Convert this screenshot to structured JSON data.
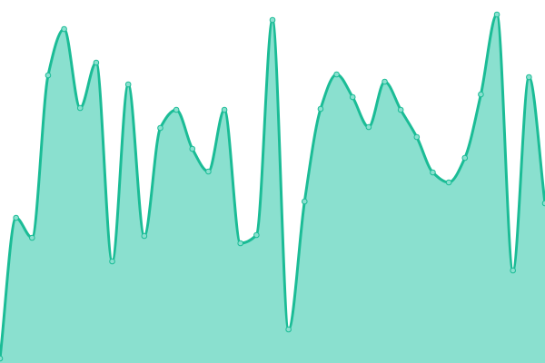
{
  "chart_data": {
    "type": "area",
    "title": "",
    "xlabel": "",
    "ylabel": "",
    "ylim": [
      0,
      400
    ],
    "grid": false,
    "smooth": true,
    "colors": {
      "line": "#1bbc96",
      "fill": "#8ae0cf",
      "point_fill": "#8ae0cf"
    },
    "values": [
      5,
      160,
      138,
      317,
      368,
      281,
      331,
      112,
      307,
      140,
      259,
      279,
      236,
      211,
      279,
      132,
      141,
      378,
      37,
      178,
      280,
      318,
      293,
      260,
      310,
      279,
      249,
      210,
      199,
      226,
      296,
      384,
      102,
      315,
      176
    ]
  }
}
